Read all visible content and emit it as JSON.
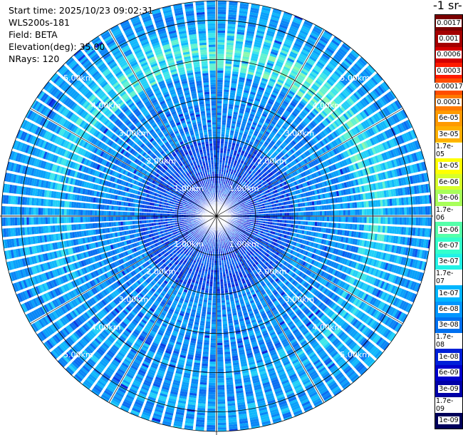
{
  "header": {
    "start_time": "Start time: 2025/10/23 09:02:31",
    "instrument": "WLS200s-181",
    "field": "Field: BETA",
    "elevation": "Elevation(deg): 35.00",
    "nrays": "NRays: 120"
  },
  "colorbar": {
    "unit_title": "-1 sr-",
    "labels": [
      "0.0017",
      "0.001",
      "0.0006",
      "0.0003",
      "0.00017",
      "0.0001",
      "6e-05",
      "3e-05",
      "1.7e-05",
      "1e-05",
      "6e-06",
      "3e-06",
      "1.7e-06",
      "1e-06",
      "6e-07",
      "3e-07",
      "1.7e-07",
      "1e-07",
      "6e-08",
      "3e-08",
      "1.7e-08",
      "1e-08",
      "6e-09",
      "3e-09",
      "1.7e-09",
      "1e-09"
    ],
    "colors": [
      "#7a0000",
      "#a30000",
      "#d40000",
      "#ff1a00",
      "#ff4d00",
      "#ff7a00",
      "#ff9a00",
      "#ffb000",
      "#ffd000",
      "#ffff00",
      "#d8ff2a",
      "#a8ff5a",
      "#78ff8a",
      "#55ffaa",
      "#33ffcc",
      "#22f2e6",
      "#10d8ff",
      "#00b6ff",
      "#0096ff",
      "#0070f0",
      "#0048e6",
      "#0020d8",
      "#0000cc",
      "#0000a8",
      "#000088",
      "#00005a"
    ]
  },
  "radar": {
    "rays": 120,
    "max_range_km": 5.5,
    "range_ring_labels": [
      "1.00km",
      "2.00km",
      "3.00km",
      "4.00km",
      "5.00km"
    ]
  }
}
